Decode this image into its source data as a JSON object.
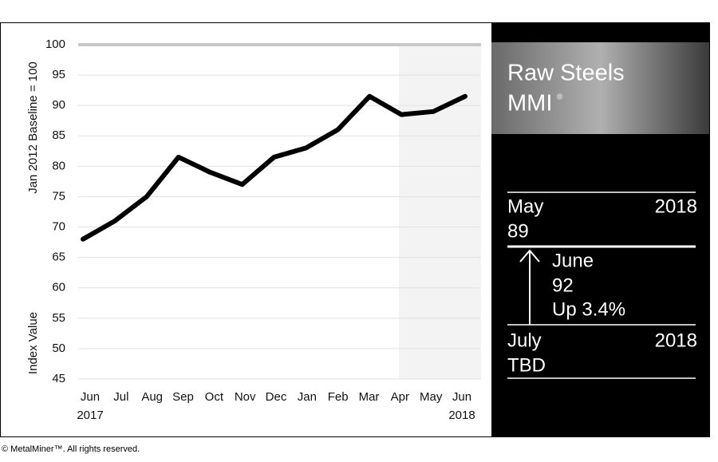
{
  "chart_data": {
    "type": "line",
    "ylabel": "Jan 2012 Baseline = 100",
    "ylabel2": "Index Value",
    "categories": [
      "Jun",
      "Jul",
      "Aug",
      "Sep",
      "Oct",
      "Nov",
      "Dec",
      "Jan",
      "Feb",
      "Mar",
      "Apr",
      "May",
      "Jun"
    ],
    "x_start_year": "2017",
    "x_end_year": "2018",
    "series": [
      {
        "name": "Raw Steels MMI",
        "color": "#000000",
        "values": [
          68,
          71,
          75,
          81.5,
          79,
          77,
          81.5,
          83,
          86,
          91.5,
          88.5,
          89,
          91.5
        ]
      }
    ],
    "ylim": [
      45,
      100
    ],
    "yticks": [
      45,
      50,
      55,
      60,
      65,
      70,
      75,
      80,
      85,
      90,
      95,
      100
    ],
    "grid": true
  },
  "panel": {
    "title": "Raw Steels",
    "title2": "MMI",
    "mark": "®",
    "prev": {
      "month": "May",
      "year": "2018",
      "value": "89"
    },
    "current": {
      "month": "June",
      "value": "92",
      "change": "Up 3.4%"
    },
    "next": {
      "month": "July",
      "year": "2018",
      "value": "TBD"
    }
  },
  "footer": "© MetalMiner™. All rights reserved."
}
